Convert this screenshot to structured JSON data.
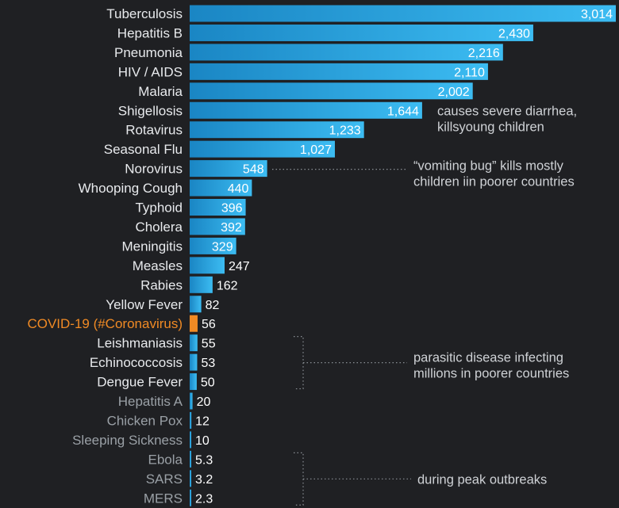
{
  "chart_data": {
    "type": "bar",
    "orientation": "horizontal",
    "unit_note": "",
    "categories": [
      "Tuberculosis",
      "Hepatitis B",
      "Pneumonia",
      "HIV / AIDS",
      "Malaria",
      "Shigellosis",
      "Rotavirus",
      "Seasonal Flu",
      "Norovirus",
      "Whooping Cough",
      "Typhoid",
      "Cholera",
      "Meningitis",
      "Measles",
      "Rabies",
      "Yellow Fever",
      "COVID-19 (#Coronavirus)",
      "Leishmaniasis",
      "Echinococcosis",
      "Dengue Fever",
      "Hepatitis A",
      "Chicken Pox",
      "Sleeping Sickness",
      "Ebola",
      "SARS",
      "MERS"
    ],
    "values": [
      3014,
      2430,
      2216,
      2110,
      2002,
      1644,
      1233,
      1027,
      548,
      440,
      396,
      392,
      329,
      247,
      162,
      82,
      56,
      55,
      53,
      50,
      20,
      12,
      10,
      5.3,
      3.2,
      2.3
    ],
    "value_labels": [
      "3,014",
      "2,430",
      "2,216",
      "2,110",
      "2,002",
      "1,644",
      "1,233",
      "1,027",
      "548",
      "440",
      "396",
      "392",
      "329",
      "247",
      "162",
      "82",
      "56",
      "55",
      "53",
      "50",
      "20",
      "12",
      "10",
      "5.3",
      "3.2",
      "2.3"
    ],
    "highlight_category": "COVID-19 (#Coronavirus)",
    "xlim": [
      0,
      3014
    ],
    "grid": false,
    "legend": "none",
    "colors": {
      "background": "#1f2023",
      "bar": "#1d93d2",
      "bar_light": "#36b6ee",
      "highlight": "#f08a24",
      "label": "#e8eaed",
      "label_dim": "#9aa0a6",
      "note": "#cfd2d6",
      "leader": "#8a8f95"
    },
    "annotations": [
      {
        "lines": [
          "causes severe diarrhea,",
          "killsyoung children"
        ],
        "target": "Shigellosis",
        "leader": "none"
      },
      {
        "lines": [
          "“vomiting bug” kills mostly",
          "children iin poorer countries"
        ],
        "target": "Norovirus",
        "leader": "dotted-line"
      },
      {
        "lines": [
          "parasitic disease infecting",
          "millions in poorer countries"
        ],
        "targets": [
          "Leishmaniasis",
          "Echinococcosis",
          "Dengue Fever"
        ],
        "leader": "dotted-bracket"
      },
      {
        "lines": [
          "during peak outbreaks"
        ],
        "targets": [
          "Ebola",
          "SARS",
          "MERS"
        ],
        "leader": "dotted-bracket"
      }
    ]
  }
}
